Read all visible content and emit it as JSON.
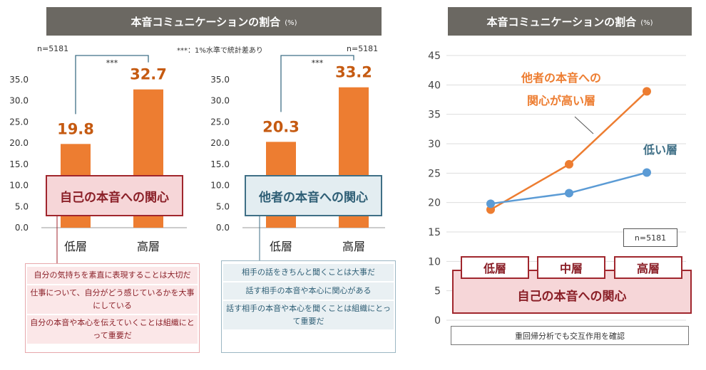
{
  "left_panel": {
    "title": "本音コミュニケーションの割合",
    "unit": "(%)",
    "note_significance": "***：1%水準で統計差あり",
    "chart_a": {
      "n_label": "n=5181",
      "sig_mark": "***",
      "box_label": "自己の本音への関心",
      "notes": [
        "自分の気持ちを素直に表現することは大切だ",
        "仕事について、自分がどう感じているかを大事にしている",
        "自分の本音や本心を伝えていくことは組織にとって重要だ"
      ]
    },
    "chart_b": {
      "n_label": "n=5181",
      "sig_mark": "***",
      "box_label": "他者の本音への関心",
      "notes": [
        "相手の話をきちんと聞くことは大事だ",
        "話す相手の本音や本心に関心がある",
        "話す相手の本音や本心を聞くことは組織にとって重要だ"
      ]
    }
  },
  "right_panel": {
    "title": "本音コミュニケーションの割合",
    "unit": "(%)",
    "annotation_high": [
      "他者の本音への",
      "関心が高い層"
    ],
    "annotation_low": "低い層",
    "n_label": "n=5181",
    "x_box_label": "自己の本音への関心",
    "footer": "重回帰分析でも交互作用を確認"
  },
  "colors": {
    "orange": "#ed7d31",
    "blue": "#5b9bd5",
    "dark_red": "#a0262d",
    "title_bg": "#6b6862"
  },
  "chart_data": [
    {
      "type": "bar",
      "title": "本音コミュニケーションの割合",
      "categories": [
        "低層",
        "高層"
      ],
      "values": [
        19.8,
        32.7
      ],
      "xlabel": "自己の本音への関心",
      "ylim": [
        0,
        35
      ],
      "yticks": [
        "0.0",
        "5.0",
        "10.0",
        "15.0",
        "20.0",
        "25.0",
        "30.0",
        "35.0"
      ]
    },
    {
      "type": "bar",
      "title": "本音コミュニケーションの割合",
      "categories": [
        "低層",
        "高層"
      ],
      "values": [
        20.3,
        33.2
      ],
      "xlabel": "他者の本音への関心",
      "ylim": [
        0,
        35
      ],
      "yticks": [
        "0.0",
        "5.0",
        "10.0",
        "15.0",
        "20.0",
        "25.0",
        "30.0",
        "35.0"
      ]
    },
    {
      "type": "line",
      "title": "本音コミュニケーションの割合",
      "categories": [
        "低層",
        "中層",
        "高層"
      ],
      "xlabel": "自己の本音への関心",
      "ylim": [
        0,
        45
      ],
      "yticks": [
        "0",
        "5",
        "10",
        "15",
        "20",
        "25",
        "30",
        "35",
        "40",
        "45"
      ],
      "series": [
        {
          "name": "他者の本音への関心が高い層",
          "color": "#ed7d31",
          "values": [
            18.8,
            26.5,
            38.9
          ]
        },
        {
          "name": "低い層",
          "color": "#5b9bd5",
          "values": [
            19.8,
            21.6,
            25.1
          ]
        }
      ]
    }
  ]
}
